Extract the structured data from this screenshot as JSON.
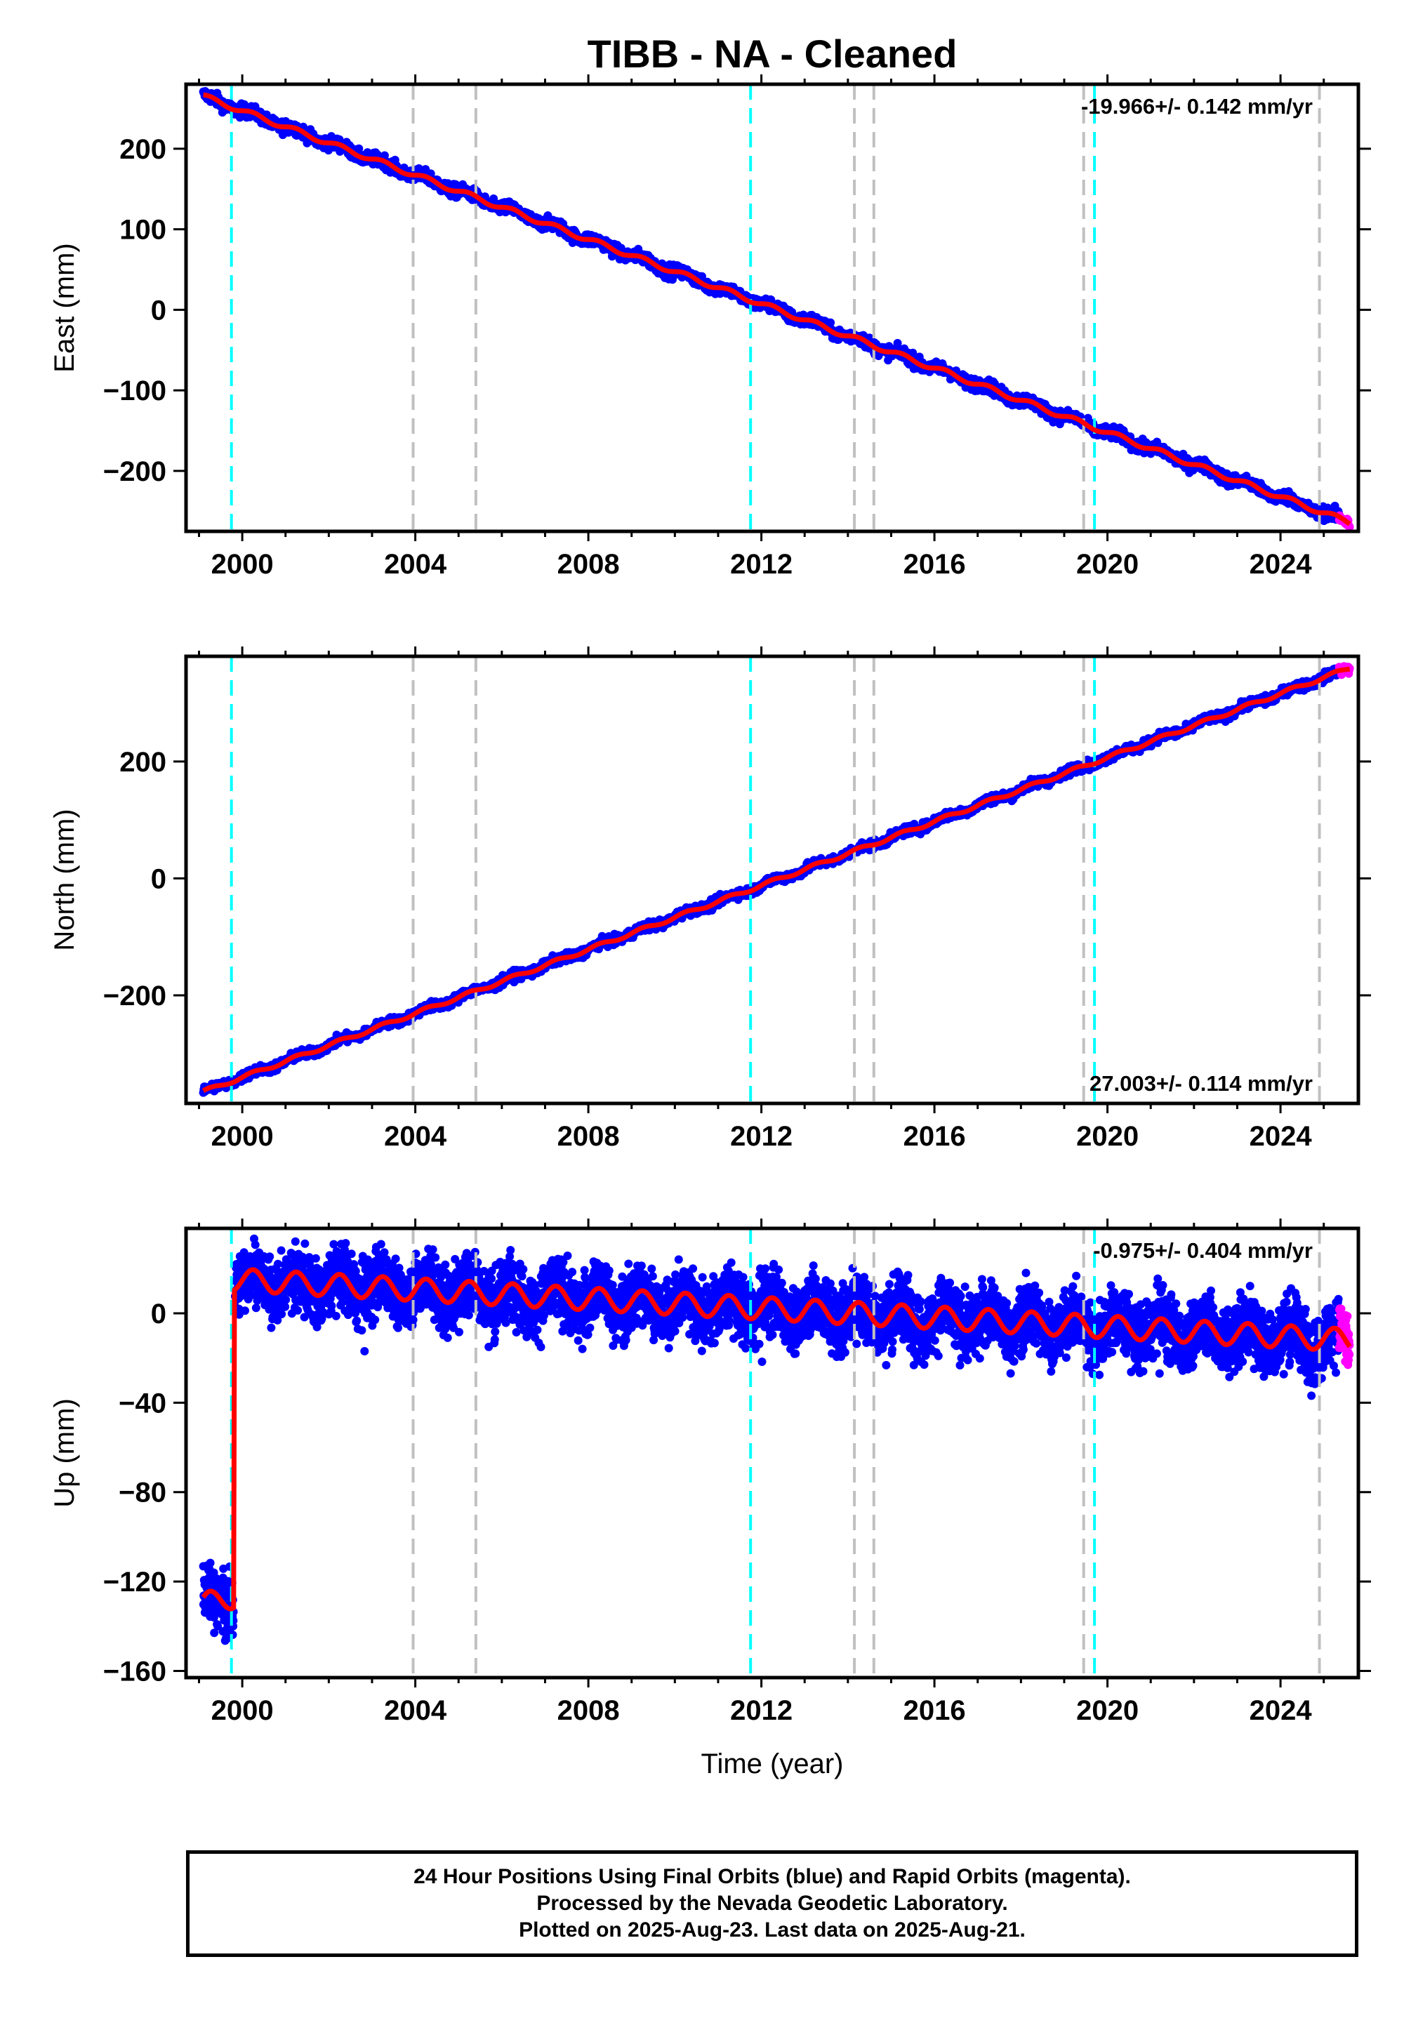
{
  "title": "TIBB  - NA - Cleaned",
  "xlabel": "Time (year)",
  "footer": {
    "lines": [
      "24 Hour Positions Using Final Orbits (blue) and Rapid Orbits (magenta).",
      "Processed by the Nevada Geodetic Laboratory.",
      "Plotted on 2025-Aug-23. Last data on 2025-Aug-21."
    ]
  },
  "colors": {
    "final_points": "#0000ff",
    "rapid_points": "#ff00ff",
    "model_line": "#ff0000",
    "equipment_change": "#00ffff",
    "other_event": "#c0c0c0"
  },
  "chart_data": [
    {
      "type": "scatter",
      "component": "east",
      "ylabel": "East (mm)",
      "rate_text": "-19.966+/- 0.142 mm/yr",
      "rate_position": "top-right",
      "xlim": [
        1998.7,
        2025.8
      ],
      "ylim": [
        -275,
        280
      ],
      "x_ticks": [
        2000,
        2004,
        2008,
        2012,
        2016,
        2020,
        2024
      ],
      "x_tick_labels": [
        "2000",
        "2004",
        "2008",
        "2012",
        "2016",
        "2020",
        "2024"
      ],
      "y_ticks": [
        200,
        100,
        0,
        -100,
        -200
      ],
      "y_tick_labels": [
        "200",
        "100",
        "0",
        "−100",
        "−200"
      ],
      "trend": {
        "start_year": 1999.1,
        "end_year": 2025.6,
        "start_value": 265,
        "end_value": -264
      },
      "seasonal_amplitude": 3,
      "scatter_noise": 4,
      "rapid_range": [
        2025.35,
        2025.65
      ]
    },
    {
      "type": "scatter",
      "component": "north",
      "ylabel": "North (mm)",
      "rate_text": "27.003+/- 0.114 mm/yr",
      "rate_position": "bottom-right",
      "xlim": [
        1998.7,
        2025.8
      ],
      "ylim": [
        -385,
        380
      ],
      "x_ticks": [
        2000,
        2004,
        2008,
        2012,
        2016,
        2020,
        2024
      ],
      "x_tick_labels": [
        "2000",
        "2004",
        "2008",
        "2012",
        "2016",
        "2020",
        "2024"
      ],
      "y_ticks": [
        200,
        0,
        -200
      ],
      "y_tick_labels": [
        "200",
        "0",
        "−200"
      ],
      "trend": {
        "start_year": 1999.1,
        "end_year": 2025.6,
        "start_value": -365,
        "end_value": 360
      },
      "seasonal_amplitude": 3,
      "scatter_noise": 4,
      "rapid_range": [
        2025.35,
        2025.65
      ]
    },
    {
      "type": "scatter",
      "component": "up",
      "ylabel": "Up (mm)",
      "rate_text": "-0.975+/- 0.404 mm/yr",
      "rate_position": "top-right",
      "xlim": [
        1998.7,
        2025.8
      ],
      "ylim": [
        -163,
        38
      ],
      "x_ticks": [
        2000,
        2004,
        2008,
        2012,
        2016,
        2020,
        2024
      ],
      "x_tick_labels": [
        "2000",
        "2004",
        "2008",
        "2012",
        "2016",
        "2020",
        "2024"
      ],
      "y_ticks": [
        0,
        -40,
        -80,
        -120,
        -160
      ],
      "y_tick_labels": [
        "0",
        "−40",
        "−80",
        "−120",
        "−160"
      ],
      "segments": [
        {
          "start_year": 1999.1,
          "end_year": 1999.8,
          "start_value": -130,
          "end_value": -127
        },
        {
          "start_year": 1999.8,
          "end_year": 2025.6,
          "start_value": 15,
          "end_value": -12
        }
      ],
      "seasonal_amplitude": 5,
      "scatter_noise": 7,
      "rapid_range": [
        2025.35,
        2025.65
      ]
    }
  ],
  "event_lines": {
    "equipment_change_years": [
      1999.75,
      2011.75,
      2019.7
    ],
    "other_event_years": [
      2003.95,
      2005.4,
      2014.15,
      2014.6,
      2019.45,
      2024.9
    ]
  }
}
